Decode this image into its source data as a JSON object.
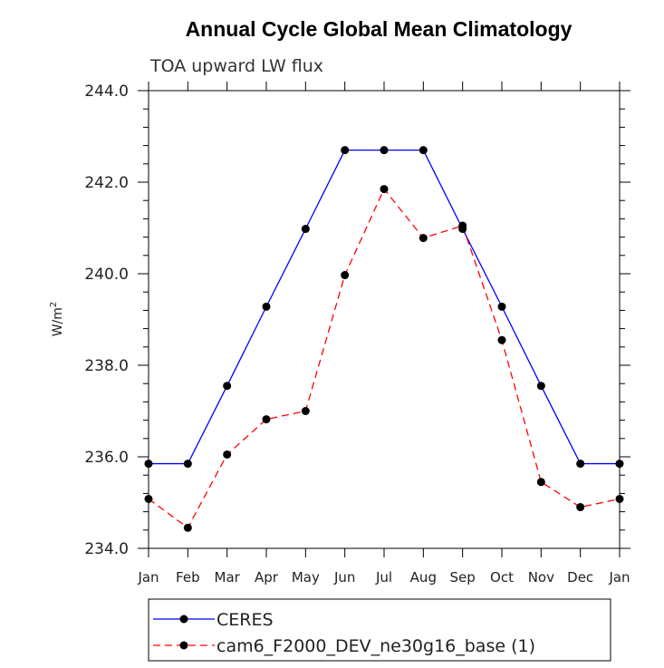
{
  "chart_data": {
    "type": "line",
    "title": "Annual Cycle Global Mean Climatology",
    "subtitle": "TOA upward LW flux",
    "ylabel": "W/m",
    "ylabel_sup": "2",
    "ylim": [
      234.0,
      244.0
    ],
    "yticks": [
      "234.0",
      "236.0",
      "238.0",
      "240.0",
      "242.0",
      "244.0"
    ],
    "ytick_values": [
      234,
      236,
      238,
      240,
      242,
      244
    ],
    "categories": [
      "Jan",
      "Feb",
      "Mar",
      "Apr",
      "May",
      "Jun",
      "Jul",
      "Aug",
      "Sep",
      "Oct",
      "Nov",
      "Dec",
      "Jan"
    ],
    "grid": false,
    "legend_position": "bottom",
    "series": [
      {
        "name": "CERES",
        "color": "#0000ff",
        "dashed": false,
        "values": [
          235.85,
          235.85,
          237.55,
          239.28,
          240.98,
          242.7,
          242.7,
          242.7,
          240.98,
          239.28,
          237.55,
          235.85,
          235.85
        ]
      },
      {
        "name": "cam6_F2000_DEV_ne30g16_base (1)",
        "color": "#ff0000",
        "dashed": true,
        "values": [
          235.08,
          234.45,
          236.05,
          236.82,
          237.0,
          239.97,
          241.85,
          240.78,
          241.05,
          238.55,
          235.45,
          234.9,
          235.08
        ]
      }
    ]
  }
}
